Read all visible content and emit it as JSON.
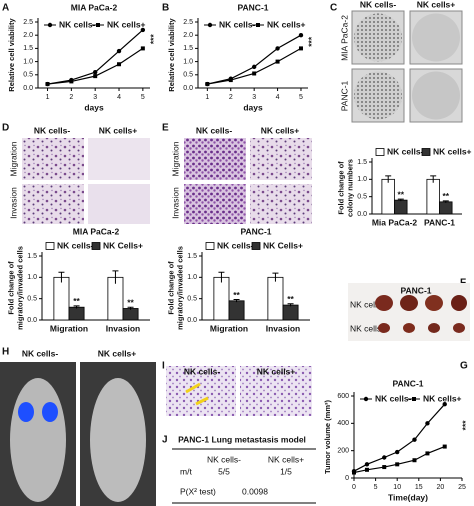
{
  "panel_labels": [
    "A",
    "B",
    "C",
    "D",
    "E",
    "F",
    "G",
    "H",
    "I",
    "J"
  ],
  "colony": {
    "rows": [
      "MIA PaCa-2",
      "PANC-1"
    ],
    "columns": [
      "NK cells-",
      "NK cells+"
    ]
  },
  "transwell_mia": {
    "columns": [
      "NK cells-",
      "NK cells+"
    ],
    "rows": [
      "Migration",
      "Invasion"
    ]
  },
  "transwell_panc": {
    "columns": [
      "NK cells-",
      "NK cells+"
    ],
    "rows": [
      "Migration",
      "Invasion"
    ]
  },
  "tumors": {
    "title": "PANC-1",
    "rows": [
      "NK cells-",
      "NK cells+"
    ]
  },
  "imaging": {
    "columns": [
      "NK cells-",
      "NK cells+"
    ]
  },
  "histology": {
    "columns": [
      "NK cells-",
      "NK cells+"
    ]
  },
  "table": {
    "title": "PANC-1 Lung metastasis model",
    "header": [
      "NK cells-",
      "NK cells+"
    ],
    "rows": [
      [
        "m/t",
        "5/5",
        "1/5"
      ],
      [
        "P(X² test)",
        "0.0098"
      ]
    ]
  },
  "chart_data": [
    {
      "type": "line",
      "title": "MIA PaCa-2",
      "x_label": "days",
      "y_label": "Relative cell viability",
      "x": [
        1,
        2,
        3,
        4,
        5
      ],
      "xlim": [
        0.6,
        5.3
      ],
      "xticks": [
        1,
        2,
        3,
        4,
        5
      ],
      "ylim": [
        0,
        2.5
      ],
      "yticks": [
        {
          "value": 0,
          "label": "0.0"
        },
        0.5,
        {
          "value": 1,
          "label": "1.0"
        },
        1.5,
        {
          "value": 2,
          "label": "2.0"
        },
        2.5
      ],
      "legend": "top",
      "annotation": "***",
      "series": [
        {
          "name": "NK cells-",
          "color": "#000000",
          "marker": "circle",
          "values": [
            0.15,
            0.3,
            0.6,
            1.4,
            2.2
          ]
        },
        {
          "name": "NK cells+",
          "color": "#000000",
          "marker": "square",
          "values": [
            0.15,
            0.25,
            0.45,
            0.9,
            1.5
          ]
        }
      ]
    },
    {
      "type": "line",
      "title": "PANC-1",
      "x_label": "days",
      "y_label": "Relative cell viability",
      "x": [
        1,
        2,
        3,
        4,
        5
      ],
      "xlim": [
        0.6,
        5.3
      ],
      "xticks": [
        1,
        2,
        3,
        4,
        5
      ],
      "ylim": [
        0,
        2.5
      ],
      "yticks": [
        {
          "value": 0,
          "label": "0.0"
        },
        0.5,
        {
          "value": 1,
          "label": "1.0"
        },
        1.5,
        {
          "value": 2,
          "label": "2.0"
        },
        2.5
      ],
      "legend": "top",
      "annotation": "***",
      "series": [
        {
          "name": "NK cells-",
          "color": "#000000",
          "marker": "circle",
          "values": [
            0.15,
            0.35,
            0.8,
            1.5,
            2.0
          ]
        },
        {
          "name": "NK cells+",
          "color": "#000000",
          "marker": "square",
          "values": [
            0.15,
            0.3,
            0.55,
            1.0,
            1.5
          ]
        }
      ]
    },
    {
      "type": "bar",
      "y_label": "Fold change of colony numbers",
      "categories": [
        "Mia PaCa-2",
        "PANC-1"
      ],
      "ylim": [
        0,
        1.5
      ],
      "yticks": [
        {
          "value": 0,
          "label": "0.0"
        },
        0.5,
        {
          "value": 1,
          "label": "1.0"
        },
        1.5
      ],
      "legend": "top",
      "annotation": "**",
      "series": [
        {
          "name": "NK cells-",
          "color": "#ffffff",
          "values": [
            1.0,
            1.0
          ],
          "errors": [
            0.1,
            0.1
          ]
        },
        {
          "name": "NK cells+",
          "color": "#333333",
          "values": [
            0.4,
            0.35
          ],
          "errors": [
            0.03,
            0.03
          ]
        }
      ]
    },
    {
      "type": "bar",
      "title": "MIA PaCa-2",
      "y_label": "Fold change of migratory/invaded cells",
      "categories": [
        "Migration",
        "Invasion"
      ],
      "ylim": [
        0,
        1.5
      ],
      "yticks": [
        {
          "value": 0,
          "label": "0.0"
        },
        0.5,
        {
          "value": 1,
          "label": "1.0"
        },
        1.5
      ],
      "legend": "top",
      "annotation": "**",
      "series": [
        {
          "name": "NK cells-",
          "color": "#ffffff",
          "values": [
            1.0,
            1.0
          ],
          "errors": [
            0.12,
            0.15
          ]
        },
        {
          "name": "NK Cells+",
          "color": "#333333",
          "values": [
            0.3,
            0.27
          ],
          "errors": [
            0.03,
            0.03
          ]
        }
      ]
    },
    {
      "type": "bar",
      "title": "PANC-1",
      "y_label": "Fold change of migratory/invaded cells",
      "categories": [
        "Migration",
        "Invasion"
      ],
      "ylim": [
        0,
        1.5
      ],
      "yticks": [
        {
          "value": 0,
          "label": "0.0"
        },
        0.5,
        {
          "value": 1,
          "label": "1.0"
        },
        1.5
      ],
      "legend": "top",
      "annotation": "**",
      "series": [
        {
          "name": "NK cells-",
          "color": "#ffffff",
          "values": [
            1.0,
            1.0
          ],
          "errors": [
            0.12,
            0.1
          ]
        },
        {
          "name": "NK Cells+",
          "color": "#333333",
          "values": [
            0.45,
            0.35
          ],
          "errors": [
            0.03,
            0.03
          ]
        }
      ]
    },
    {
      "type": "line",
      "title": "PANC-1",
      "x_label": "Time(day)",
      "y_label": "Tumor volume (mm³)",
      "x": [
        0,
        3,
        7,
        10,
        14,
        17,
        21
      ],
      "xlim": [
        0,
        25
      ],
      "xticks": [
        0,
        5,
        10,
        15,
        20,
        25
      ],
      "ylim": [
        0,
        600
      ],
      "yticks": [
        0,
        200,
        400,
        600
      ],
      "legend": "top",
      "annotation": "***",
      "series": [
        {
          "name": "NK cells-",
          "color": "#000000",
          "marker": "circle",
          "values": [
            50,
            100,
            150,
            190,
            280,
            400,
            540
          ]
        },
        {
          "name": "NK cells+",
          "color": "#000000",
          "marker": "square",
          "values": [
            40,
            60,
            80,
            100,
            130,
            180,
            230
          ]
        }
      ]
    }
  ]
}
